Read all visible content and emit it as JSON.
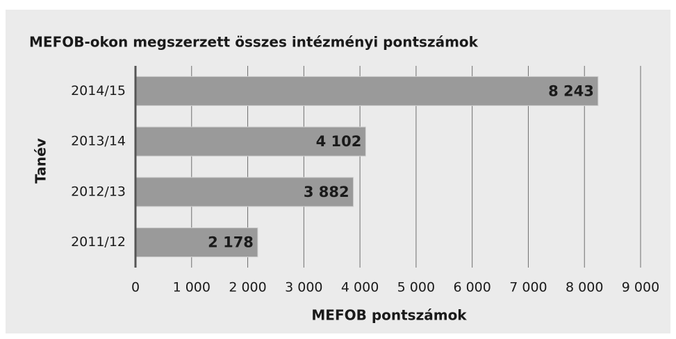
{
  "chart_data": {
    "type": "bar",
    "orientation": "horizontal",
    "title": "MEFOB-okon megszerzett összes intézményi pontszámok",
    "y_label": "Tanév",
    "x_label": "MEFOB pontszámok",
    "categories": [
      "2014/15",
      "2013/14",
      "2012/13",
      "2011/12"
    ],
    "values": [
      8243,
      4102,
      3882,
      2178
    ],
    "value_labels": [
      "8 243",
      "4 102",
      "3 882",
      "2 178"
    ],
    "color": "#9a9a9a",
    "xlim": [
      0,
      9000
    ],
    "xticks": [
      0,
      {
        "value": 1000,
        "label": "1 000"
      },
      {
        "value": 2000,
        "label": "2 000"
      },
      {
        "value": 3000,
        "label": "3 000"
      },
      {
        "value": 4000,
        "label": "4 000"
      },
      {
        "value": 5000,
        "label": "5 000"
      },
      {
        "value": 6000,
        "label": "6 000"
      },
      {
        "value": 7000,
        "label": "7 000"
      },
      {
        "value": 8000,
        "label": "8 000"
      },
      {
        "value": 9000,
        "label": "9 000"
      }
    ],
    "grid": true
  }
}
